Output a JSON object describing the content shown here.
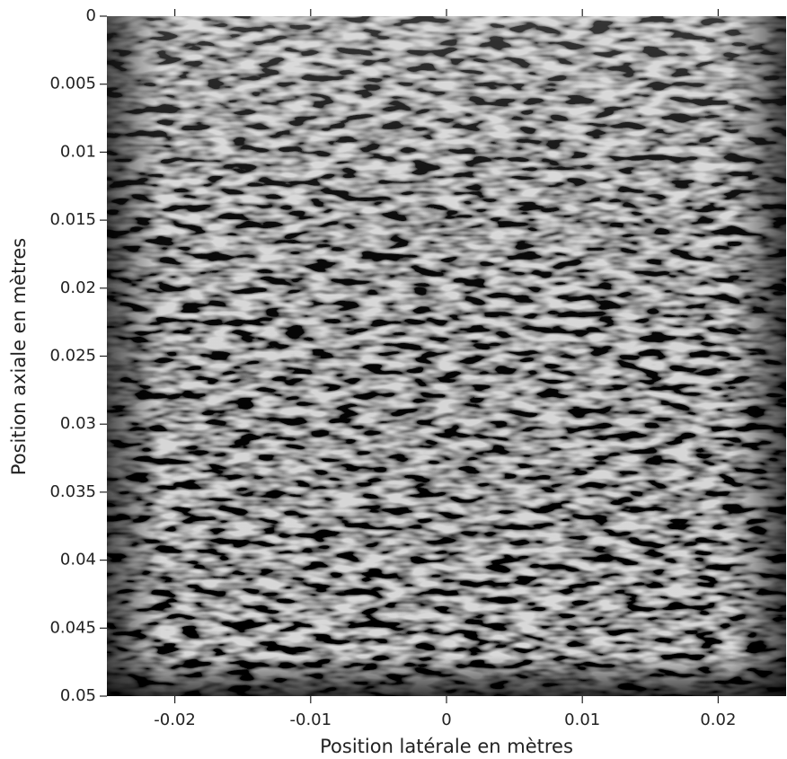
{
  "chart_data": {
    "type": "image",
    "xlabel": "Position latérale en mètres",
    "ylabel": "Position axiale en mètres",
    "xlim": [
      -0.025,
      0.025
    ],
    "xticks": [
      -0.02,
      -0.01,
      0,
      0.01,
      0.02
    ],
    "ylim": [
      0.05,
      0
    ],
    "yticks": [
      0,
      0.005,
      0.01,
      0.015,
      0.02,
      0.025,
      0.03,
      0.035,
      0.04,
      0.045,
      0.05
    ],
    "colormap": "gray"
  }
}
